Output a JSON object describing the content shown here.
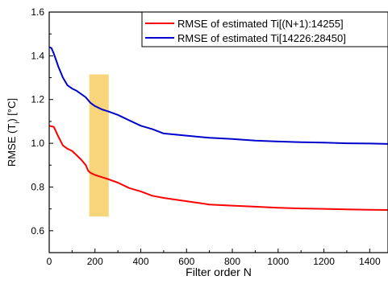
{
  "chart_data": {
    "type": "line",
    "title": "",
    "xlabel": "Filter order N",
    "ylabel_text": "RMSE (T",
    "ylabel_sub": "i",
    "ylabel_tail": ") [°C]",
    "xlim": [
      0,
      1480
    ],
    "ylim": [
      0.5,
      1.6
    ],
    "x_ticks": [
      0,
      200,
      400,
      600,
      800,
      1000,
      1200,
      1400
    ],
    "y_ticks": [
      0.6,
      0.8,
      1.0,
      1.2,
      1.4,
      1.6
    ],
    "y_tick_labels": [
      "0.6",
      "0.8",
      "1.0",
      "1.2",
      "1.4",
      "1.6"
    ],
    "grid": false,
    "legend_placement": "top-right",
    "highlight": {
      "x_range": [
        175,
        260
      ],
      "y_range": [
        0.665,
        1.315
      ],
      "color": "#F5C242"
    },
    "series": [
      {
        "name": "RMSE of estimated Ti[(N+1):14255]",
        "color": "#FF0000",
        "x": [
          0,
          20,
          40,
          60,
          80,
          100,
          120,
          140,
          160,
          170,
          180,
          200,
          230,
          260,
          300,
          350,
          400,
          450,
          500,
          600,
          700,
          800,
          900,
          1000,
          1100,
          1200,
          1300,
          1400,
          1480
        ],
        "values": [
          1.08,
          1.075,
          1.03,
          0.99,
          0.975,
          0.965,
          0.945,
          0.925,
          0.9,
          0.875,
          0.865,
          0.855,
          0.845,
          0.835,
          0.82,
          0.795,
          0.78,
          0.76,
          0.75,
          0.735,
          0.72,
          0.715,
          0.71,
          0.705,
          0.702,
          0.7,
          0.698,
          0.696,
          0.695
        ]
      },
      {
        "name": "RMSE of estimated Ti[14226:28450]",
        "color": "#0000CC",
        "x": [
          0,
          10,
          20,
          40,
          60,
          80,
          100,
          120,
          140,
          160,
          180,
          200,
          230,
          260,
          300,
          350,
          400,
          450,
          500,
          600,
          700,
          800,
          900,
          1000,
          1100,
          1200,
          1300,
          1400,
          1480
        ],
        "values": [
          1.44,
          1.435,
          1.41,
          1.35,
          1.3,
          1.265,
          1.25,
          1.24,
          1.225,
          1.21,
          1.185,
          1.17,
          1.155,
          1.145,
          1.13,
          1.105,
          1.08,
          1.065,
          1.045,
          1.035,
          1.025,
          1.02,
          1.012,
          1.008,
          1.005,
          1.003,
          1.0,
          0.999,
          0.997
        ]
      }
    ]
  }
}
